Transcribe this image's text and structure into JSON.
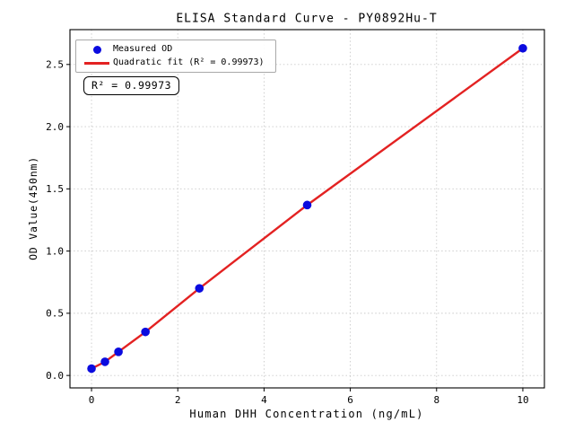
{
  "chart_data": {
    "type": "scatter",
    "title": "ELISA Standard Curve - PY0892Hu-T",
    "xlabel": "Human DHH Concentration (ng/mL)",
    "ylabel": "OD Value(450nm)",
    "xlim": [
      -0.5,
      10.5
    ],
    "ylim": [
      -0.1,
      2.78
    ],
    "xtick_values": [
      0,
      2,
      4,
      6,
      8,
      10
    ],
    "xtick_labels": [
      "0",
      "2",
      "4",
      "6",
      "8",
      "10"
    ],
    "ytick_values": [
      0,
      0.5,
      1,
      1.5,
      2,
      2.5
    ],
    "ytick_labels": [
      "0.0",
      "0.5",
      "1.0",
      "1.5",
      "2.0",
      "2.5"
    ],
    "grid": true,
    "legend_position": "upper-left",
    "series": [
      {
        "name": "Measured OD",
        "type": "scatter",
        "color": "#0b0bdf",
        "x": [
          0,
          0.312,
          0.625,
          1.25,
          2.5,
          5,
          10
        ],
        "y": [
          0.055,
          0.11,
          0.19,
          0.35,
          0.7,
          1.37,
          2.63
        ]
      },
      {
        "name": "Quadratic fit (R² = 0.99973)",
        "type": "line",
        "color": "#e32222",
        "fit_of": "Measured OD"
      }
    ],
    "annotation": "R² = 0.99973",
    "r_squared": 0.99973
  }
}
